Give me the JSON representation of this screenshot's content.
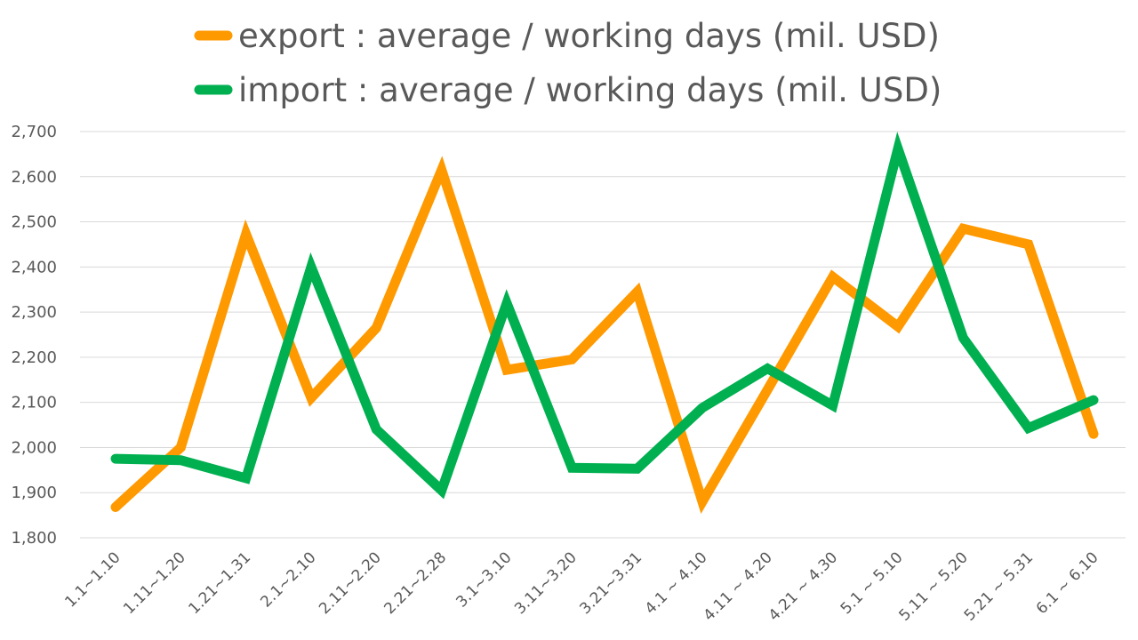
{
  "chart_data": {
    "type": "line",
    "title": "",
    "xlabel": "",
    "ylabel": "",
    "ylim": [
      1800,
      2700
    ],
    "y_ticks": [
      "1,800",
      "1,900",
      "2,000",
      "2,100",
      "2,200",
      "2,300",
      "2,400",
      "2,500",
      "2,600",
      "2,700"
    ],
    "grid": true,
    "legend_position": "top",
    "categories": [
      "1.1~1.10",
      "1.11~1.20",
      "1.21~1.31",
      "2.1~2.10",
      "2.11~2.20",
      "2.21~2.28",
      "3.1~3.10",
      "3.11~3.20",
      "3.21~3.31",
      "4.1 ~ 4.10",
      "4.11 ~ 4.20",
      "4.21 ~ 4.30",
      "5.1 ~ 5.10",
      "5.11 ~ 5.20",
      "5.21 ~ 5.31",
      "6.1 ~ 6.10"
    ],
    "series": [
      {
        "name": "export : average / working days (mil. USD)",
        "color": "#ff9900",
        "values": [
          1868,
          2000,
          2473,
          2110,
          2265,
          2615,
          2172,
          2195,
          2345,
          1880,
          2128,
          2378,
          2268,
          2485,
          2450,
          2030
        ]
      },
      {
        "name": "import : average / working days (mil. USD)",
        "color": "#00b050",
        "values": [
          1975,
          1972,
          1932,
          2400,
          2040,
          1905,
          2320,
          1955,
          1953,
          2088,
          2175,
          2093,
          2662,
          2243,
          2043,
          2105
        ]
      }
    ]
  }
}
